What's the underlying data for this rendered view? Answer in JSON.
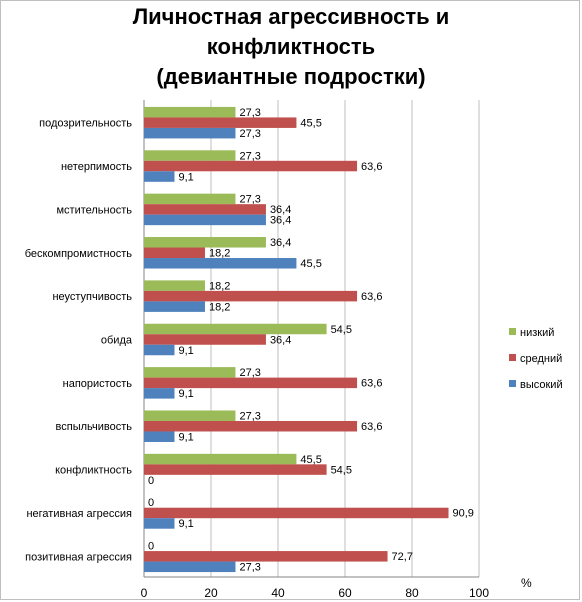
{
  "chart_data": {
    "type": "bar",
    "orientation": "horizontal",
    "title_lines": [
      "Личностная агрессивность и",
      "конфликтность",
      "(девиантные подростки)"
    ],
    "xlabel": "%",
    "xlim": [
      0,
      100
    ],
    "xticks": [
      "0",
      "20",
      "40",
      "60",
      "80",
      "100"
    ],
    "categories": [
      "подозрительность",
      "нетерпимость",
      "мстительность",
      "бескомпромистность",
      "неуступчивость",
      "обида",
      "напористость",
      "вспыльчивость",
      "конфликтность",
      "негативная агрессия",
      "позитивная агрессия"
    ],
    "category_labels": [
      "подозрительность",
      "нетерпимость",
      "мстительность",
      "бескомпромистность",
      "неуступчивость",
      "обида",
      "напористость",
      "вспыльчивость",
      "конфликтность",
      "негативная агрессия",
      "позитивная агрессия"
    ],
    "series": [
      {
        "name": "низкий",
        "color": "#9bbb59",
        "values": [
          27.3,
          27.3,
          27.3,
          36.4,
          18.2,
          54.5,
          27.3,
          27.3,
          45.5,
          0,
          0
        ],
        "labels": [
          "27,3",
          "27,3",
          "27,3",
          "36,4",
          "18,2",
          "54,5",
          "27,3",
          "27,3",
          "45,5",
          "0",
          "0"
        ]
      },
      {
        "name": "средний",
        "color": "#c0504d",
        "values": [
          45.5,
          63.6,
          36.4,
          18.2,
          63.6,
          36.4,
          63.6,
          63.6,
          54.5,
          90.9,
          72.7
        ],
        "labels": [
          "45,5",
          "63,6",
          "36,4",
          "18,2",
          "63,6",
          "36,4",
          "63,6",
          "63,6",
          "54,5",
          "90,9",
          "72,7"
        ]
      },
      {
        "name": "высокий",
        "color": "#4f81bd",
        "values": [
          27.3,
          9.1,
          36.4,
          45.5,
          18.2,
          9.1,
          9.1,
          9.1,
          0,
          9.1,
          27.3
        ],
        "labels": [
          "27,3",
          "9,1",
          "36,4",
          "45,5",
          "18,2",
          "9,1",
          "9,1",
          "9,1",
          "0",
          "9,1",
          "27,3"
        ]
      }
    ],
    "legend_order": [
      "низкий",
      "средний",
      "высокий"
    ],
    "legend_position": "right",
    "grid": true
  }
}
